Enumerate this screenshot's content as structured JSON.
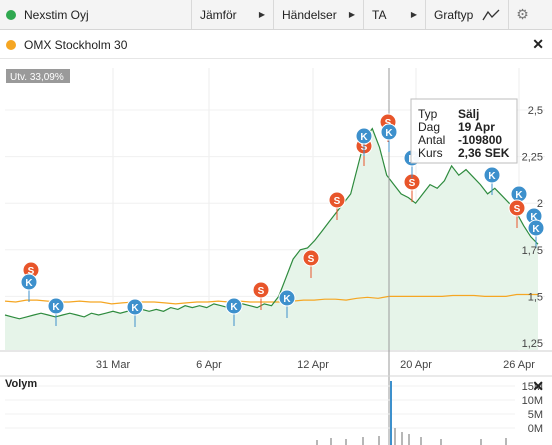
{
  "toolbar": {
    "title": "Nexstim Oyj",
    "compare": "Jämför",
    "events": "Händelser",
    "ta": "TA",
    "graph_type": "Graftyp",
    "status_color": "#2fa84f"
  },
  "compare_row": {
    "label": "OMX Stockholm 30",
    "color": "#f5a623",
    "close_icon": "close-icon"
  },
  "badge": "Utv. 33,09%",
  "tooltip": {
    "rows": [
      {
        "key": "Typ",
        "value": "Sälj"
      },
      {
        "key": "Dag",
        "value": "19 Apr"
      },
      {
        "key": "Antal",
        "value": "-109800"
      },
      {
        "key": "Kurs",
        "value": "2,36 SEK"
      }
    ]
  },
  "volume": {
    "label": "Volym",
    "ticks": [
      "15M",
      "10M",
      "5M",
      "0M"
    ]
  },
  "chart_data": {
    "type": "line",
    "x_ticks": [
      "31 Mar",
      "6 Apr",
      "12 Apr",
      "20 Apr",
      "26 Apr"
    ],
    "y_ticks": [
      "2,5",
      "2,25",
      "2",
      "1,75",
      "1,5",
      "1,25"
    ],
    "ylim": [
      1.25,
      2.5
    ],
    "series": [
      {
        "name": "Nexstim Oyj",
        "color": "#2e8b3e",
        "values": [
          1.4,
          1.39,
          1.38,
          1.39,
          1.4,
          1.41,
          1.4,
          1.39,
          1.4,
          1.41,
          1.4,
          1.39,
          1.41,
          1.4,
          1.41,
          1.42,
          1.41,
          1.42,
          1.41,
          1.43,
          1.42,
          1.43,
          1.42,
          1.44,
          1.43,
          1.45,
          1.44,
          1.45,
          1.44,
          1.46,
          1.45,
          1.44,
          1.45,
          1.46,
          1.45,
          1.44,
          1.46,
          1.45,
          1.5,
          1.6,
          1.7,
          1.75,
          1.76,
          1.8,
          1.85,
          1.9,
          1.95,
          2.0,
          2.05,
          2.2,
          2.35,
          2.4,
          2.3,
          2.15,
          2.1,
          2.05,
          2.03,
          2.0,
          2.05,
          2.1,
          2.08,
          2.12,
          2.2,
          2.15,
          2.18,
          2.14,
          2.1,
          2.05,
          2.08,
          2.04,
          2.0,
          1.95,
          1.88,
          1.82,
          1.78
        ]
      },
      {
        "name": "OMX Stockholm 30",
        "color": "#f5a623",
        "values": [
          1.475,
          1.47,
          1.48,
          1.48,
          1.475,
          1.47,
          1.47,
          1.475,
          1.47,
          1.47,
          1.46,
          1.465,
          1.47,
          1.47,
          1.47,
          1.465,
          1.46,
          1.465,
          1.47,
          1.47,
          1.475,
          1.47,
          1.475,
          1.47,
          1.47,
          1.47,
          1.47,
          1.475,
          1.48,
          1.48,
          1.485,
          1.485,
          1.48,
          1.49,
          1.495,
          1.49,
          1.5,
          1.5,
          1.5,
          1.5,
          1.5,
          1.5,
          1.505,
          1.505,
          1.505,
          1.5,
          1.5,
          1.5,
          1.51,
          1.51,
          1.51
        ]
      }
    ],
    "events": [
      {
        "type": "S",
        "label": "Sälj"
      },
      {
        "type": "K",
        "label": "Köp"
      }
    ],
    "event_colors": {
      "S": "#e8552a",
      "K": "#3d90cc"
    }
  }
}
